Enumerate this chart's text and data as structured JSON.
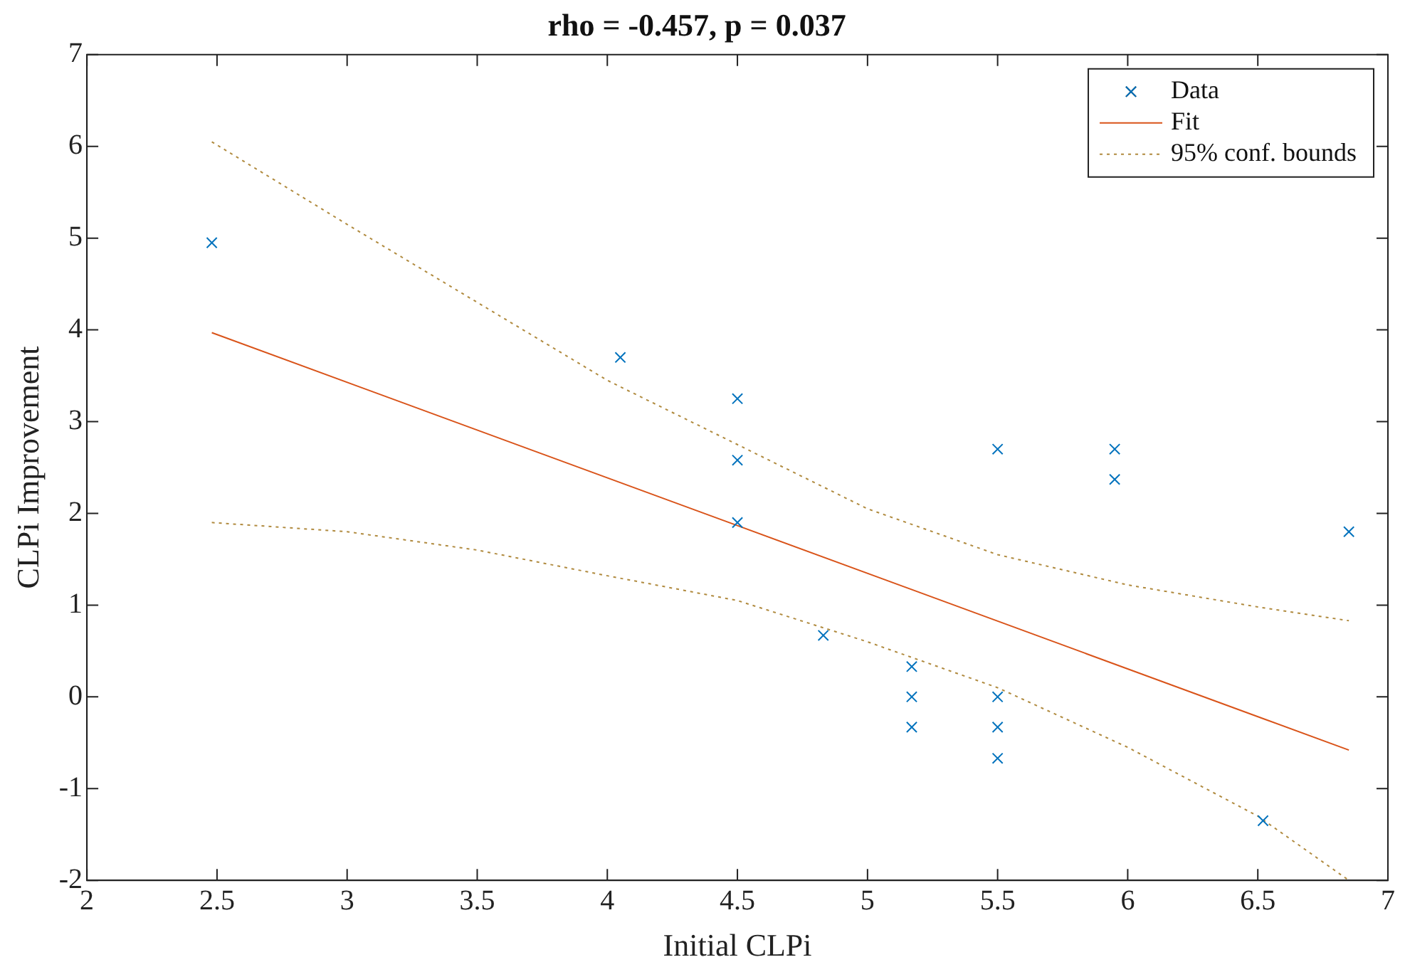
{
  "chart_data": {
    "type": "scatter",
    "title": "rho = -0.457, p = 0.037",
    "xlabel": "Initial CLPi",
    "ylabel": "CLPi Improvement",
    "xlim": [
      2,
      7
    ],
    "xticks": [
      2,
      2.5,
      3,
      3.5,
      4,
      4.5,
      5,
      5.5,
      6,
      6.5,
      7
    ],
    "ylim": [
      -2,
      7
    ],
    "yticks": [
      -2,
      -1,
      0,
      1,
      2,
      3,
      4,
      5,
      6,
      7
    ],
    "grid": false,
    "legend": "top right",
    "series": [
      {
        "name": "Data",
        "type": "scatter",
        "marker": "cross",
        "color": "#0072bd",
        "x": [
          2.48,
          4.05,
          4.5,
          4.5,
          4.5,
          4.83,
          5.17,
          5.17,
          5.17,
          5.5,
          5.5,
          5.5,
          5.5,
          5.95,
          5.95,
          6.52,
          6.85
        ],
        "values": [
          4.95,
          3.7,
          3.25,
          2.58,
          1.9,
          0.67,
          0.33,
          0,
          -0.33,
          2.7,
          0,
          -0.33,
          -0.67,
          2.7,
          2.37,
          -1.35,
          1.8
        ]
      },
      {
        "name": "Fit",
        "type": "line",
        "marker": "none",
        "line_style": "solid",
        "color": "#d95319",
        "x": [
          2.48,
          6.85
        ],
        "values": [
          3.97,
          -0.58
        ]
      },
      {
        "name": "95% conf. bounds",
        "type": "line",
        "marker": "none",
        "line_style": "dotted",
        "color": "#b08a3e",
        "x": [
          2.48,
          3,
          3.5,
          4,
          4.5,
          5,
          5.5,
          6,
          6.5,
          6.85
        ],
        "values": [
          6.05,
          5.15,
          4.3,
          3.45,
          2.75,
          2.05,
          1.55,
          1.22,
          0.98,
          0.83
        ]
      },
      {
        "type": "line",
        "marker": "none",
        "line_style": "dotted",
        "color": "#b08a3e",
        "x": [
          2.48,
          3,
          3.5,
          4,
          4.5,
          5,
          5.5,
          6,
          6.5,
          6.85
        ],
        "values": [
          1.9,
          1.8,
          1.6,
          1.32,
          1.05,
          0.6,
          0.1,
          -0.55,
          -1.3,
          -2.0
        ]
      }
    ]
  }
}
